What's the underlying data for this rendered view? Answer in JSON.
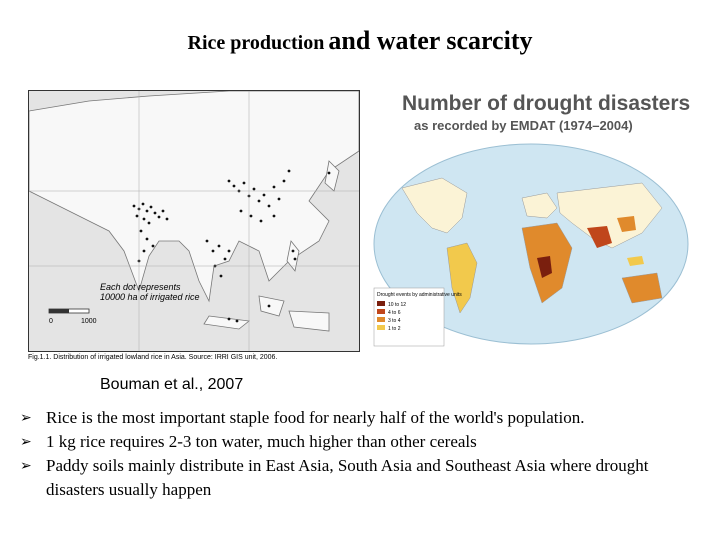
{
  "title": {
    "part1": "Rice production",
    "part2": "and water scarcity"
  },
  "left_figure": {
    "legend_line1": "Each dot represents",
    "legend_line2": "10000 ha of irrigated rice",
    "scale_start": "0",
    "scale_end": "1000",
    "caption": "Fig.1.1. Distribution of irrigated lowland rice in Asia. Source: IRRI GIS unit, 2006."
  },
  "right_figure": {
    "title": "Number of drought disasters",
    "subtitle": "as recorded by EMDAT (1974–2004)",
    "legend_heading": "Drought events by administrative units",
    "legend_items": [
      {
        "label": "10 to 12",
        "color": "#7a1f0e"
      },
      {
        "label": "4 to 6",
        "color": "#c0461b"
      },
      {
        "label": "3 to 4",
        "color": "#e08a2c"
      },
      {
        "label": "1 to 2",
        "color": "#f2c94c"
      }
    ]
  },
  "citation": "Bouman et al., 2007",
  "bullets": [
    "Rice is the most important staple food for nearly half of the world's population.",
    "1 kg rice requires 2-3 ton water, much higher than other cereals",
    "Paddy soils mainly distribute in East Asia, South Asia and Southeast Asia where drought disasters usually happen"
  ],
  "bullet_glyph": "➢"
}
